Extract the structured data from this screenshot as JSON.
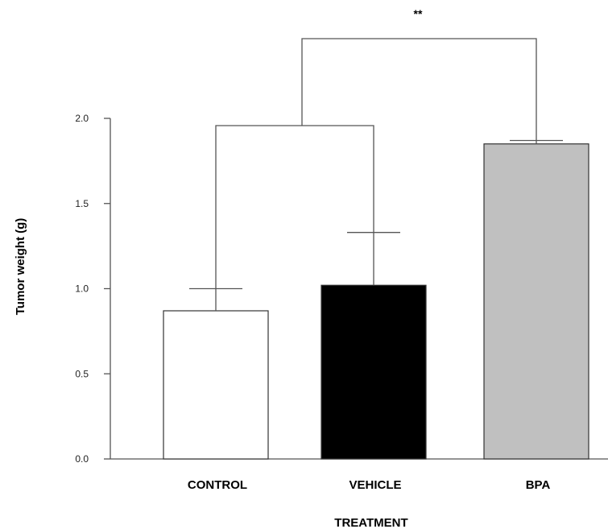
{
  "chart_data": {
    "type": "bar",
    "title": "",
    "xlabel": "TREATMENT",
    "ylabel": "Tumor weight (g)",
    "ylim": [
      0,
      2.0
    ],
    "yticks": [
      "0.0",
      "0.5",
      "1.0",
      "1.5",
      "2.0"
    ],
    "categories": [
      "CONTROL",
      "VEHICLE",
      "BPA"
    ],
    "values": [
      0.87,
      1.02,
      1.85
    ],
    "errors": [
      0.13,
      0.31,
      0.02
    ],
    "colors": [
      "#ffffff",
      "#000000",
      "#c0c0c0"
    ],
    "grid": false,
    "significance": {
      "label": "**",
      "comparison": "CONTROL + VEHICLE vs BPA"
    }
  }
}
